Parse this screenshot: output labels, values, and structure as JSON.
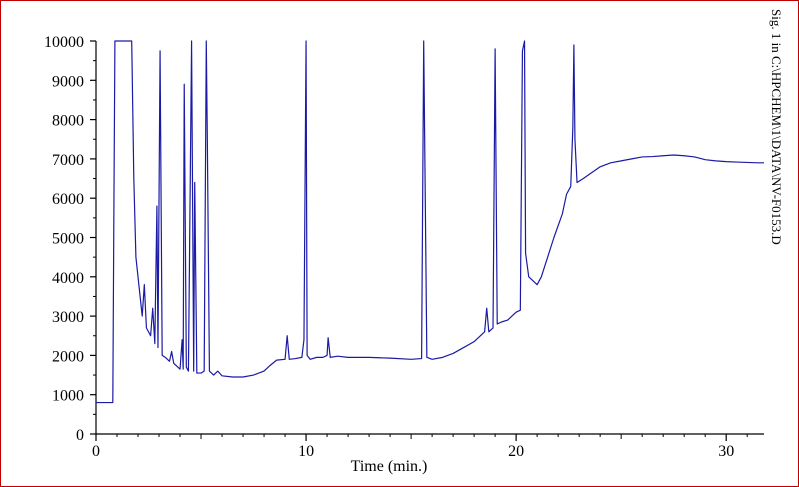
{
  "chart_data": {
    "type": "line",
    "title": "",
    "xlabel": "Time (min.)",
    "ylabel": "",
    "side_label": "Sig. 1 in C:\\HPCHEM\\1\\DATA\\NV-F0153.D",
    "xlim": [
      0,
      31.8
    ],
    "ylim": [
      0,
      10000
    ],
    "x_ticks": [
      0,
      10,
      20,
      30
    ],
    "y_ticks": [
      0,
      1000,
      2000,
      3000,
      4000,
      5000,
      6000,
      7000,
      8000,
      9000,
      10000
    ],
    "grid": false,
    "line_color": "#1a1aa6",
    "series": [
      {
        "values": [
          [
            0,
            800
          ],
          [
            0.7,
            800
          ],
          [
            0.8,
            800
          ],
          [
            0.85,
            5600
          ],
          [
            0.9,
            10000
          ],
          [
            1.7,
            10000
          ],
          [
            1.8,
            6500
          ],
          [
            1.9,
            4500
          ],
          [
            2.1,
            3500
          ],
          [
            2.2,
            3000
          ],
          [
            2.3,
            3800
          ],
          [
            2.4,
            2700
          ],
          [
            2.6,
            2500
          ],
          [
            2.7,
            3200
          ],
          [
            2.8,
            2300
          ],
          [
            2.9,
            5800
          ],
          [
            2.95,
            2200
          ],
          [
            3.05,
            9750
          ],
          [
            3.15,
            2000
          ],
          [
            3.3,
            1950
          ],
          [
            3.5,
            1850
          ],
          [
            3.6,
            2100
          ],
          [
            3.7,
            1800
          ],
          [
            3.9,
            1700
          ],
          [
            4.0,
            1650
          ],
          [
            4.1,
            2400
          ],
          [
            4.15,
            1650
          ],
          [
            4.2,
            8900
          ],
          [
            4.3,
            1700
          ],
          [
            4.4,
            1600
          ],
          [
            4.55,
            10000
          ],
          [
            4.65,
            1600
          ],
          [
            4.7,
            6400
          ],
          [
            4.8,
            1550
          ],
          [
            5.0,
            1550
          ],
          [
            5.15,
            1600
          ],
          [
            5.25,
            10000
          ],
          [
            5.3,
            7500
          ],
          [
            5.4,
            1600
          ],
          [
            5.6,
            1500
          ],
          [
            5.8,
            1600
          ],
          [
            6.0,
            1480
          ],
          [
            6.5,
            1450
          ],
          [
            7.0,
            1450
          ],
          [
            7.5,
            1500
          ],
          [
            8.0,
            1600
          ],
          [
            8.3,
            1750
          ],
          [
            8.6,
            1880
          ],
          [
            9.0,
            1900
          ],
          [
            9.1,
            2500
          ],
          [
            9.2,
            1900
          ],
          [
            9.5,
            1920
          ],
          [
            9.8,
            1950
          ],
          [
            9.9,
            2400
          ],
          [
            10.0,
            10000
          ],
          [
            10.05,
            2000
          ],
          [
            10.2,
            1900
          ],
          [
            10.5,
            1950
          ],
          [
            10.8,
            1950
          ],
          [
            11.0,
            2000
          ],
          [
            11.05,
            2450
          ],
          [
            11.15,
            1950
          ],
          [
            11.5,
            1980
          ],
          [
            12.0,
            1950
          ],
          [
            13.0,
            1950
          ],
          [
            14.0,
            1930
          ],
          [
            15.0,
            1900
          ],
          [
            15.5,
            1920
          ],
          [
            15.6,
            10000
          ],
          [
            15.75,
            1950
          ],
          [
            16.0,
            1900
          ],
          [
            16.5,
            1950
          ],
          [
            17.0,
            2050
          ],
          [
            17.5,
            2200
          ],
          [
            18.0,
            2350
          ],
          [
            18.5,
            2600
          ],
          [
            18.6,
            3200
          ],
          [
            18.7,
            2600
          ],
          [
            18.9,
            2700
          ],
          [
            19.0,
            9800
          ],
          [
            19.1,
            2800
          ],
          [
            19.3,
            2850
          ],
          [
            19.6,
            2900
          ],
          [
            19.8,
            3000
          ],
          [
            20.0,
            3100
          ],
          [
            20.2,
            3150
          ],
          [
            20.3,
            9750
          ],
          [
            20.4,
            10000
          ],
          [
            20.45,
            4600
          ],
          [
            20.6,
            4000
          ],
          [
            20.8,
            3900
          ],
          [
            21.0,
            3800
          ],
          [
            21.2,
            4000
          ],
          [
            21.5,
            4500
          ],
          [
            21.8,
            5000
          ],
          [
            22.0,
            5300
          ],
          [
            22.2,
            5600
          ],
          [
            22.4,
            6100
          ],
          [
            22.6,
            6300
          ],
          [
            22.7,
            7800
          ],
          [
            22.75,
            9900
          ],
          [
            22.8,
            7500
          ],
          [
            22.9,
            6400
          ],
          [
            23.2,
            6500
          ],
          [
            23.6,
            6650
          ],
          [
            24.0,
            6800
          ],
          [
            24.5,
            6900
          ],
          [
            25.0,
            6950
          ],
          [
            25.5,
            7000
          ],
          [
            26.0,
            7050
          ],
          [
            26.5,
            7060
          ],
          [
            27.0,
            7080
          ],
          [
            27.5,
            7100
          ],
          [
            28.0,
            7080
          ],
          [
            28.5,
            7050
          ],
          [
            29.0,
            6980
          ],
          [
            29.5,
            6950
          ],
          [
            30.0,
            6930
          ],
          [
            30.5,
            6920
          ],
          [
            31.0,
            6910
          ],
          [
            31.5,
            6900
          ],
          [
            31.8,
            6900
          ]
        ]
      }
    ]
  }
}
